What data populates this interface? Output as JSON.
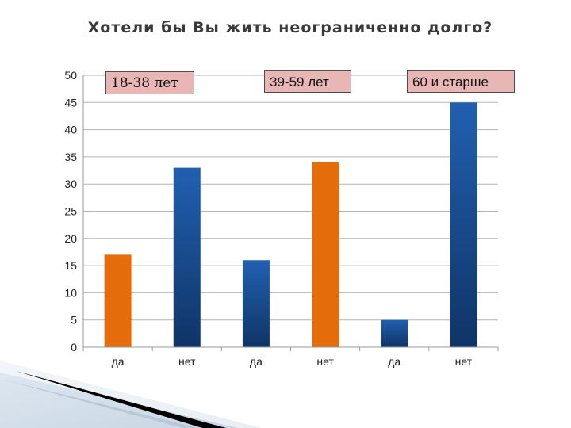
{
  "chart_data": {
    "type": "bar",
    "title": "Хотели бы Вы жить неограниченно долго?",
    "categories": [
      "да",
      "нет",
      "да",
      "нет",
      "да",
      "нет"
    ],
    "groups": [
      "18-38 лет",
      "39-59 лет",
      "60 и старше"
    ],
    "values": [
      17,
      33,
      16,
      34,
      5,
      45
    ],
    "bar_colors": [
      "#e46c0a",
      "#1f5aa6",
      "#1f5aa6",
      "#e46c0a",
      "#1f5aa6",
      "#1f5aa6"
    ],
    "yticks": [
      0,
      5,
      10,
      15,
      20,
      25,
      30,
      35,
      40,
      45,
      50
    ],
    "ylim": [
      0,
      50
    ],
    "grid": true
  }
}
